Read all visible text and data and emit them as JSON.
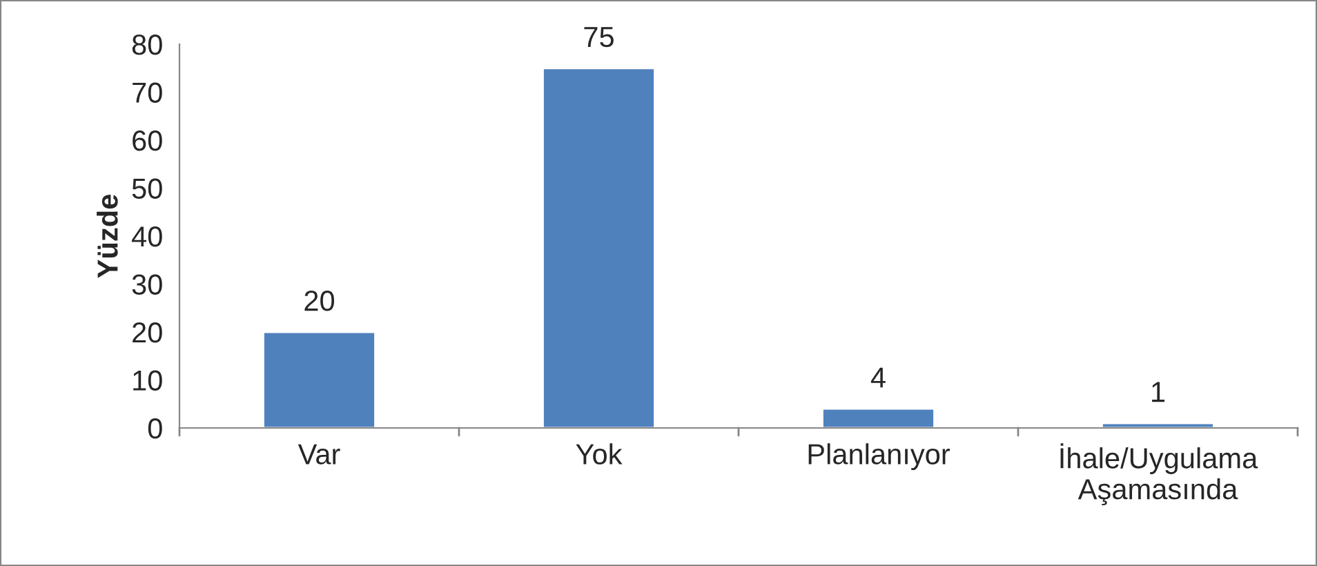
{
  "chart_data": {
    "type": "bar",
    "ylabel": "Yüzde",
    "categories": [
      "Var",
      "Yok",
      "Planlanıyor",
      "İhale/Uygulama\nAşamasında"
    ],
    "values": [
      20,
      75,
      4,
      1
    ],
    "color": "#4f81bd",
    "ylim": [
      0,
      80
    ],
    "yticks": [
      0,
      10,
      20,
      30,
      40,
      50,
      60,
      70,
      80
    ],
    "data_labels": true,
    "grid": false,
    "legend": false
  }
}
